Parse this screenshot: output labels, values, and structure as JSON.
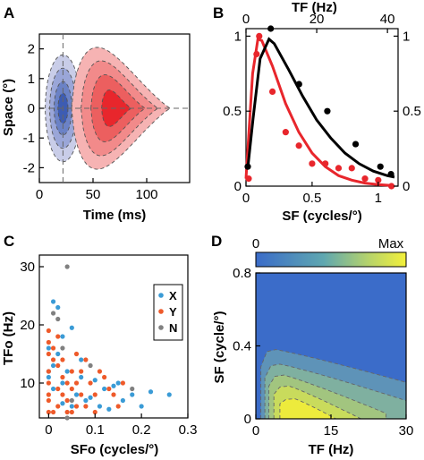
{
  "colors": {
    "black": "#000000",
    "red": "#e8262c",
    "blue": "#2f57b5",
    "pink": "#f48a8a",
    "x_dot": "#3a9bd6",
    "y_dot": "#ee5a2a",
    "n_dot": "#808080"
  },
  "panels": {
    "A": {
      "letter": "A",
      "title": "",
      "xlabel": "Time (ms)",
      "ylabel": "Space (°)",
      "xticks": [
        "0",
        "50",
        "100"
      ],
      "yticks": [
        "2",
        "1",
        "0",
        "-1",
        "-2"
      ]
    },
    "B": {
      "letter": "B",
      "top_label": "TF (Hz)",
      "xlabel": "SF (cycles/°)",
      "top_ticks": [
        "0",
        "20",
        "40"
      ],
      "bottom_ticks": [
        "0",
        "0.5",
        "1"
      ],
      "left_ticks": [
        "1",
        "0.5",
        "0"
      ],
      "right_ticks": [
        "1",
        "0.5",
        "0"
      ]
    },
    "C": {
      "letter": "C",
      "xlabel": "SFo (cycles/°)",
      "ylabel": "TFo (Hz)",
      "xticks": [
        "0",
        "0.1",
        "0.2",
        "0.3"
      ],
      "yticks": [
        "30",
        "20",
        "10"
      ],
      "legend": [
        "X",
        "Y",
        "N"
      ]
    },
    "D": {
      "letter": "D",
      "xlabel": "TF (Hz)",
      "ylabel": "SF (cycle/°)",
      "xticks": [
        "0",
        "15",
        "30"
      ],
      "yticks": [
        "0.8",
        "0.4",
        "0"
      ],
      "colorbar_min": "0",
      "colorbar_max": "Max"
    }
  },
  "chart_data": [
    {
      "panel": "A",
      "type": "heatmap",
      "description_of_axes": "x = Time (ms), y = Space (deg)",
      "xlim": [
        0,
        140
      ],
      "ylim": [
        -2.5,
        2.5
      ],
      "reference_lines": {
        "vertical_x": 22,
        "horizontal_y": 0
      },
      "lobes": [
        {
          "sign": "negative",
          "color": "blue",
          "center_time": 22,
          "center_space": 0,
          "time_extent": [
            5,
            38
          ],
          "space_halfwidth": 1.8
        },
        {
          "sign": "positive",
          "color": "red",
          "center_time": 70,
          "center_space": 0,
          "time_extent": [
            30,
            122
          ],
          "space_halfwidth": 2.2
        }
      ]
    },
    {
      "panel": "B",
      "type": "line",
      "ylim": [
        0,
        1.05
      ],
      "series": [
        {
          "color": "red",
          "x_axis": "SF (cycles/°)",
          "xlim": [
            0,
            1.15
          ],
          "points": [
            [
              0.02,
              0.05
            ],
            [
              0.08,
              0.88
            ],
            [
              0.1,
              1.0
            ],
            [
              0.2,
              0.63
            ],
            [
              0.3,
              0.36
            ],
            [
              0.4,
              0.27
            ],
            [
              0.5,
              0.15
            ],
            [
              0.6,
              0.15
            ],
            [
              0.7,
              0.12
            ],
            [
              0.8,
              0.12
            ],
            [
              0.9,
              0.05
            ],
            [
              1.0,
              0.04
            ],
            [
              1.1,
              0.0
            ]
          ],
          "fit": [
            [
              0.0,
              0.05
            ],
            [
              0.05,
              0.75
            ],
            [
              0.09,
              0.98
            ],
            [
              0.12,
              0.97
            ],
            [
              0.2,
              0.8
            ],
            [
              0.3,
              0.55
            ],
            [
              0.4,
              0.36
            ],
            [
              0.5,
              0.22
            ],
            [
              0.6,
              0.13
            ],
            [
              0.7,
              0.07
            ],
            [
              0.8,
              0.04
            ],
            [
              0.9,
              0.02
            ],
            [
              1.0,
              0.01
            ],
            [
              1.1,
              0.005
            ]
          ]
        },
        {
          "color": "black",
          "x_axis": "TF (Hz)",
          "xlim": [
            0,
            43
          ],
          "points": [
            [
              0.5,
              0.13
            ],
            [
              7,
              1.05
            ],
            [
              15,
              0.68
            ],
            [
              23,
              0.5
            ],
            [
              31,
              0.28
            ],
            [
              38,
              0.13
            ],
            [
              41,
              0.08
            ]
          ],
          "fit": [
            [
              0.5,
              0.12
            ],
            [
              2,
              0.45
            ],
            [
              4,
              0.85
            ],
            [
              6.5,
              0.98
            ],
            [
              8,
              0.95
            ],
            [
              12,
              0.78
            ],
            [
              16,
              0.6
            ],
            [
              20,
              0.44
            ],
            [
              24,
              0.32
            ],
            [
              28,
              0.22
            ],
            [
              32,
              0.15
            ],
            [
              36,
              0.1
            ],
            [
              40,
              0.07
            ],
            [
              42,
              0.06
            ]
          ]
        }
      ]
    },
    {
      "panel": "C",
      "type": "scatter",
      "xlabel": "SFo (cycles/°)",
      "ylabel": "TFo (Hz)",
      "xlim": [
        -0.02,
        0.3
      ],
      "ylim": [
        4,
        32
      ],
      "series": [
        {
          "name": "X",
          "color": "x_dot",
          "points": [
            [
              0.01,
              24
            ],
            [
              0.02,
              23
            ],
            [
              0.03,
              18
            ],
            [
              0.05,
              19.5
            ],
            [
              0.0,
              16
            ],
            [
              0.07,
              14
            ],
            [
              0.0,
              11
            ],
            [
              0.01,
              13
            ],
            [
              0.03,
              10
            ],
            [
              0.06,
              8
            ],
            [
              0.08,
              7
            ],
            [
              0.11,
              6
            ],
            [
              0.12,
              9
            ],
            [
              0.14,
              9.5
            ],
            [
              0.16,
              7
            ],
            [
              0.18,
              8
            ],
            [
              0.22,
              8.5
            ],
            [
              0.26,
              8
            ],
            [
              0.2,
              6
            ],
            [
              0.1,
              10.5
            ],
            [
              0.07,
              11
            ],
            [
              0.04,
              12
            ],
            [
              0.02,
              15
            ],
            [
              0.0,
              12
            ],
            [
              0.05,
              6
            ],
            [
              0.09,
              7.5
            ],
            [
              0.13,
              5.5
            ],
            [
              0.03,
              6.5
            ],
            [
              0.15,
              10
            ],
            [
              0.01,
              9
            ]
          ]
        },
        {
          "name": "Y",
          "color": "y_dot",
          "points": [
            [
              0.0,
              19
            ],
            [
              0.0,
              17
            ],
            [
              0.0,
              15
            ],
            [
              0.01,
              14
            ],
            [
              0.0,
              12
            ],
            [
              0.0,
              10
            ],
            [
              0.0,
              8
            ],
            [
              0.0,
              7
            ],
            [
              0.01,
              5
            ],
            [
              0.02,
              6
            ],
            [
              0.02,
              9
            ],
            [
              0.02,
              13
            ],
            [
              0.03,
              11
            ],
            [
              0.03,
              8
            ],
            [
              0.03,
              14
            ],
            [
              0.04,
              7
            ],
            [
              0.04,
              10
            ],
            [
              0.04,
              5
            ],
            [
              0.05,
              12
            ],
            [
              0.05,
              9
            ],
            [
              0.06,
              15
            ],
            [
              0.06,
              6
            ],
            [
              0.06,
              10
            ],
            [
              0.07,
              8
            ],
            [
              0.07,
              12
            ],
            [
              0.08,
              14
            ],
            [
              0.08,
              6
            ],
            [
              0.09,
              10
            ],
            [
              0.1,
              8
            ],
            [
              0.11,
              12
            ],
            [
              0.12,
              11
            ],
            [
              0.13,
              9
            ],
            [
              0.14,
              8
            ],
            [
              0.16,
              10
            ],
            [
              0.01,
              16
            ],
            [
              0.02,
              18
            ],
            [
              0.05,
              5
            ],
            [
              0.1,
              5
            ],
            [
              0.15,
              6
            ],
            [
              0.0,
              5
            ]
          ]
        },
        {
          "name": "N",
          "color": "n_dot",
          "points": [
            [
              0.04,
              30
            ],
            [
              0.01,
              22
            ],
            [
              0.02,
              21
            ],
            [
              0.03,
              16
            ],
            [
              0.09,
              13
            ],
            [
              0.18,
              9
            ],
            [
              0.05,
              7
            ],
            [
              0.04,
              4
            ]
          ]
        }
      ]
    },
    {
      "panel": "D",
      "type": "heatmap",
      "xlabel": "TF (Hz)",
      "ylabel": "SF (cycle/°)",
      "xlim": [
        0,
        30
      ],
      "ylim": [
        0,
        0.8
      ],
      "peak": {
        "tf": 8,
        "sf": 0.05
      },
      "colorbar": {
        "min_label": "0",
        "max_label": "Max",
        "colors": [
          "#3b6cc9",
          "#7fb0a0",
          "#b8d26a",
          "#f2f23a"
        ]
      }
    }
  ]
}
